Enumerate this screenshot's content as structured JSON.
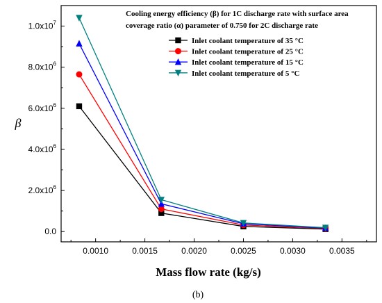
{
  "chart_data": {
    "type": "line",
    "title_lines": [
      "Cooling energy efficiency (β) for 1C discharge rate with surface area",
      "coverage ratio (α) parameter of 0.750 for 2C discharge rate"
    ],
    "xlabel": "Mass flow rate (kg/s)",
    "ylabel": "β",
    "caption": "(b)",
    "xlim": [
      0.00065,
      0.00385
    ],
    "ylim": [
      -500000,
      11000000
    ],
    "x_ticks": [
      {
        "value": 0.001,
        "label": "0.0010"
      },
      {
        "value": 0.0015,
        "label": "0.0015"
      },
      {
        "value": 0.002,
        "label": "0.0020"
      },
      {
        "value": 0.0025,
        "label": "0.0025"
      },
      {
        "value": 0.003,
        "label": "0.0030"
      },
      {
        "value": 0.0035,
        "label": "0.0035"
      }
    ],
    "y_ticks": [
      {
        "value": 0,
        "mantissa": "0.0",
        "exp": ""
      },
      {
        "value": 2000000,
        "mantissa": "2.0x10",
        "exp": "6"
      },
      {
        "value": 4000000,
        "mantissa": "4.0x10",
        "exp": "6"
      },
      {
        "value": 6000000,
        "mantissa": "6.0x10",
        "exp": "6"
      },
      {
        "value": 8000000,
        "mantissa": "8.0x10",
        "exp": "6"
      },
      {
        "value": 10000000,
        "mantissa": "1.0x10",
        "exp": "7"
      }
    ],
    "x": [
      0.000833,
      0.001667,
      0.0025,
      0.003333
    ],
    "series": [
      {
        "name": "Inlet coolant temperature of 35 °C",
        "color": "#000000",
        "marker": "square",
        "values": [
          6100000,
          900000,
          250000,
          120000
        ]
      },
      {
        "name": "Inlet coolant temperature of 25 °C",
        "color": "#ff0000",
        "marker": "circle",
        "values": [
          7650000,
          1100000,
          320000,
          150000
        ]
      },
      {
        "name": "Inlet coolant temperature of 15 °C",
        "color": "#0000ff",
        "marker": "triangle-up",
        "values": [
          9150000,
          1350000,
          380000,
          170000
        ]
      },
      {
        "name": "Inlet coolant temperature of 5 °C",
        "color": "#008080",
        "marker": "triangle-down",
        "values": [
          10400000,
          1550000,
          420000,
          190000
        ]
      }
    ],
    "grid": false,
    "legend_position": "top-right"
  }
}
